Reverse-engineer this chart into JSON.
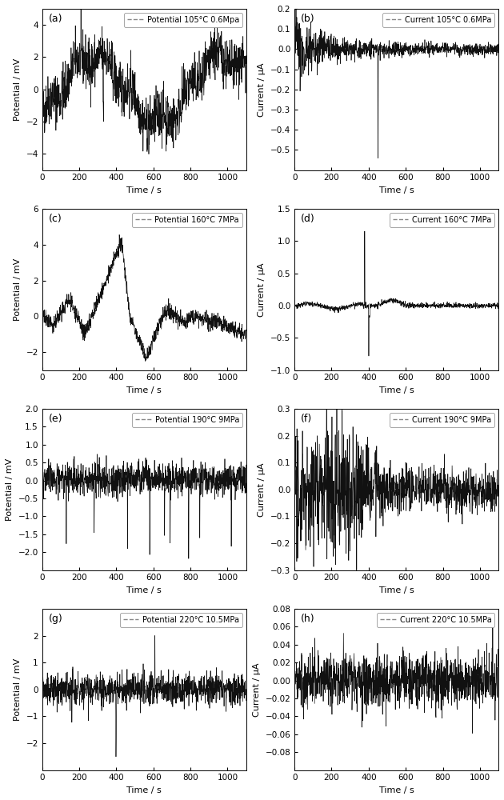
{
  "subplots": [
    {
      "label": "(a)",
      "legend": "Potential 105°C 0.6Mpa",
      "ylabel": "Potential / mV",
      "ylim": [
        -5,
        5
      ],
      "yticks": [
        -4,
        -2,
        0,
        2,
        4
      ],
      "noise_type": "potential_a"
    },
    {
      "label": "(b)",
      "legend": "Current 105°C 0.6MPa",
      "ylabel": "Current / μA",
      "ylim": [
        -0.6,
        0.2
      ],
      "yticks": [
        -0.5,
        -0.4,
        -0.3,
        -0.2,
        -0.1,
        0.0,
        0.1,
        0.2
      ],
      "noise_type": "current_b"
    },
    {
      "label": "(c)",
      "legend": "Potential 160°C 7MPa",
      "ylabel": "Potential / mV",
      "ylim": [
        -3,
        6
      ],
      "yticks": [
        -2,
        0,
        2,
        4,
        6
      ],
      "noise_type": "potential_c"
    },
    {
      "label": "(d)",
      "legend": "Current 160°C 7MPa",
      "ylabel": "Current / μA",
      "ylim": [
        -1.0,
        1.5
      ],
      "yticks": [
        -1.0,
        -0.5,
        0.0,
        0.5,
        1.0,
        1.5
      ],
      "noise_type": "current_d"
    },
    {
      "label": "(e)",
      "legend": "Potential 190°C 9MPa",
      "ylabel": "Potential / mV",
      "ylim": [
        -2.5,
        2.0
      ],
      "yticks": [
        -2.0,
        -1.5,
        -1.0,
        -0.5,
        0.0,
        0.5,
        1.0,
        1.5,
        2.0
      ],
      "noise_type": "potential_e"
    },
    {
      "label": "(f)",
      "legend": "Current 190°C 9MPa",
      "ylabel": "Current / μA",
      "ylim": [
        -0.3,
        0.3
      ],
      "yticks": [
        -0.3,
        -0.2,
        -0.1,
        0.0,
        0.1,
        0.2,
        0.3
      ],
      "noise_type": "current_f"
    },
    {
      "label": "(g)",
      "legend": "Potential 220°C 10.5MPa",
      "ylabel": "Potential / mV",
      "ylim": [
        -3,
        3
      ],
      "yticks": [
        -2,
        -1,
        0,
        1,
        2
      ],
      "noise_type": "potential_g"
    },
    {
      "label": "(h)",
      "legend": "Current 220°C 10.5MPa",
      "ylabel": "Current / μA",
      "ylim": [
        -0.1,
        0.08
      ],
      "yticks": [
        -0.08,
        -0.06,
        -0.04,
        -0.02,
        0.0,
        0.02,
        0.04,
        0.06,
        0.08
      ],
      "noise_type": "current_h"
    }
  ],
  "xlabel": "Time / s",
  "xlim": [
    0,
    1100
  ],
  "xticks": [
    0,
    200,
    400,
    600,
    800,
    1000
  ],
  "line_color": "#111111",
  "legend_line_color": "#888888",
  "figsize": [
    6.3,
    10.0
  ],
  "dpi": 100,
  "nrows": 4,
  "ncols": 2
}
